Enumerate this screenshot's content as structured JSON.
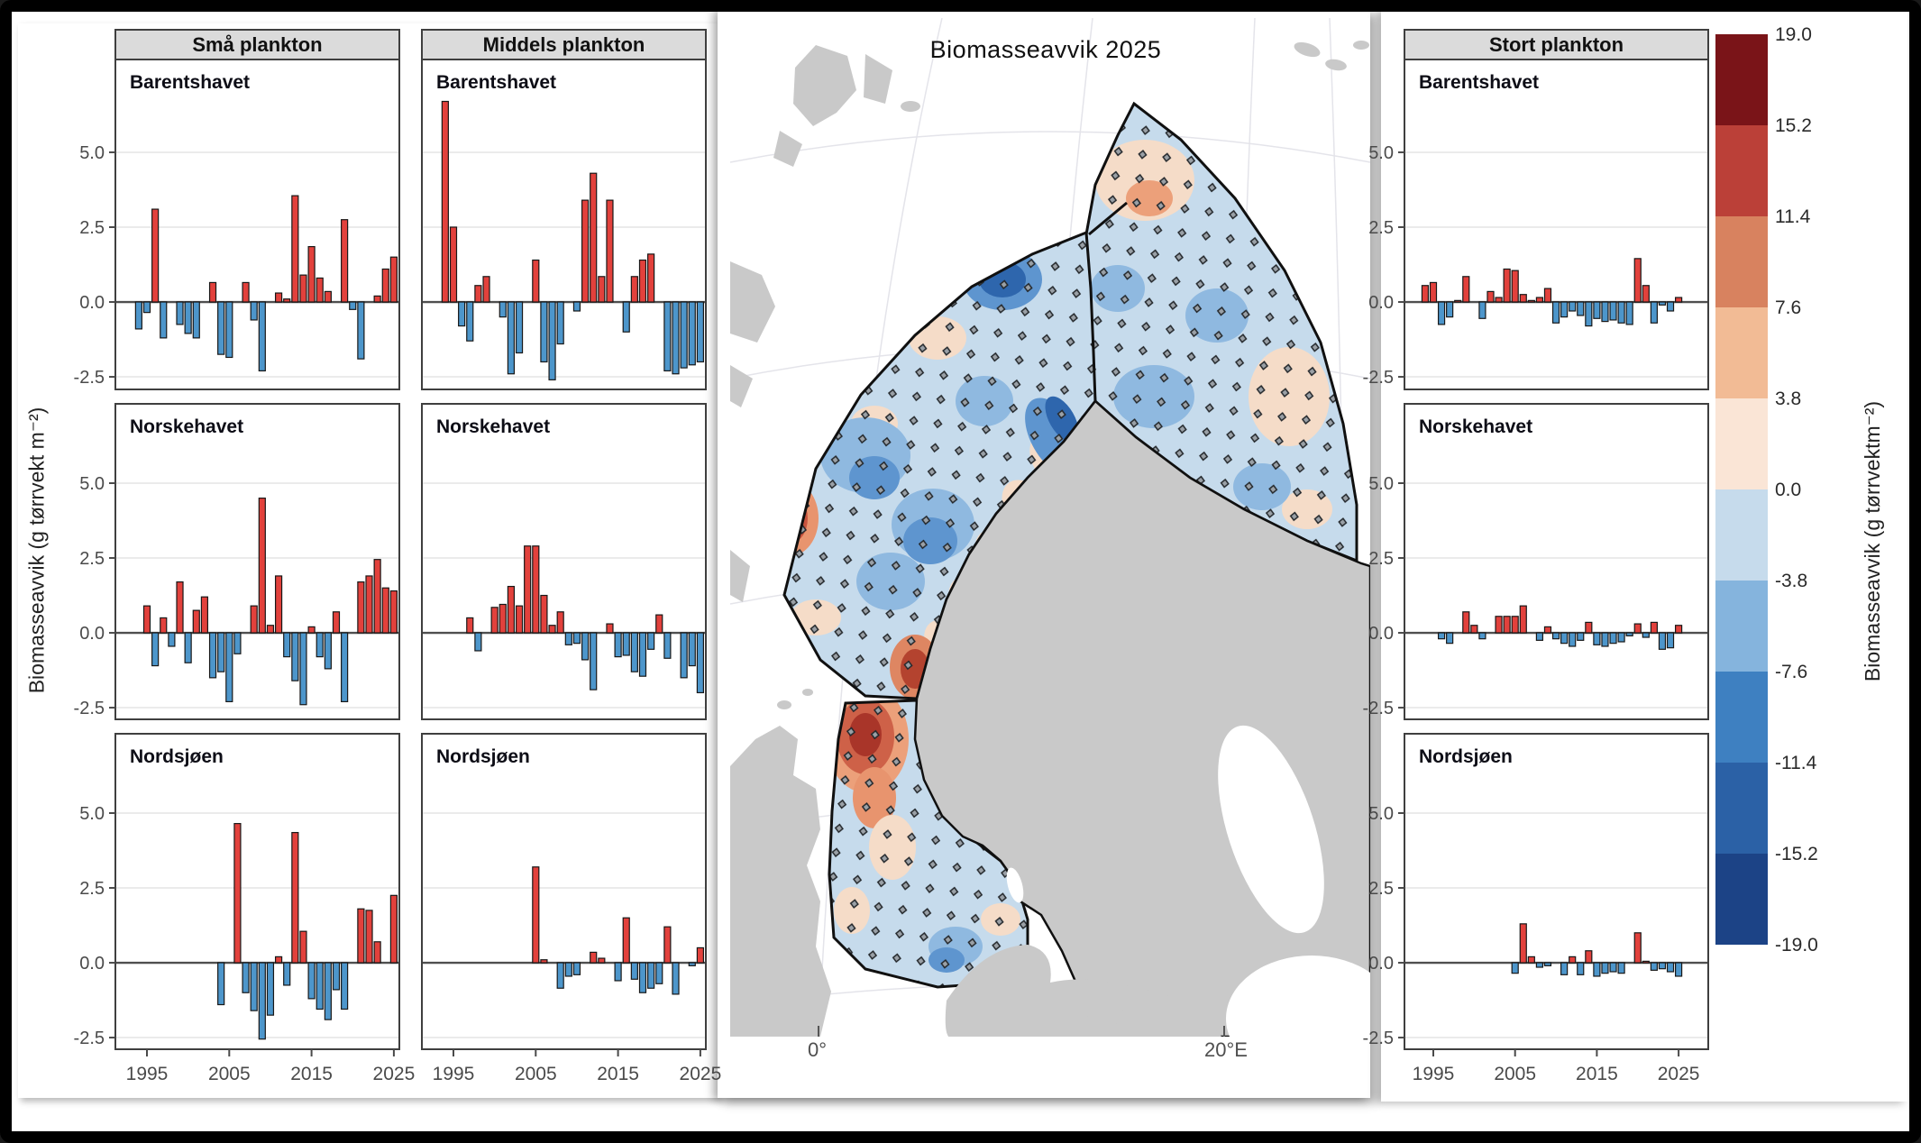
{
  "chart_data": {
    "type": "bar",
    "title": "Biomasseavvik 2025",
    "ylabel": "Biomasseavvik (g tørrvekt m⁻²)",
    "xlabel": "",
    "x_ticks": [
      1995,
      2005,
      2015,
      2025
    ],
    "y_ticks": [
      "5.0",
      "2.5",
      "0.0",
      "-2.5"
    ],
    "ylim": [
      -2.9,
      8.1
    ],
    "grid": "horizontal",
    "columns": [
      {
        "label": "Små plankton"
      },
      {
        "label": "Middels plankton"
      },
      {
        "label": "Stort plankton"
      }
    ],
    "rows": [
      "Barentshavet",
      "Norskehavet",
      "Nordsjøen"
    ],
    "facets": [
      {
        "id": "sma-barentshavet",
        "col": 0,
        "row": 0,
        "region": "Barentshavet",
        "points": [
          [
            1994,
            -0.9
          ],
          [
            1995,
            -0.35
          ],
          [
            1996,
            3.1
          ],
          [
            1997,
            -1.2
          ],
          [
            1999,
            -0.75
          ],
          [
            2000,
            -1.05
          ],
          [
            2001,
            -1.2
          ],
          [
            2003,
            0.65
          ],
          [
            2004,
            -1.75
          ],
          [
            2005,
            -1.85
          ],
          [
            2007,
            0.65
          ],
          [
            2008,
            -0.6
          ],
          [
            2009,
            -2.3
          ],
          [
            2011,
            0.3
          ],
          [
            2012,
            0.1
          ],
          [
            2013,
            3.55
          ],
          [
            2014,
            0.9
          ],
          [
            2015,
            1.85
          ],
          [
            2016,
            0.8
          ],
          [
            2017,
            0.35
          ],
          [
            2019,
            2.75
          ],
          [
            2020,
            -0.25
          ],
          [
            2021,
            -1.9
          ],
          [
            2023,
            0.2
          ],
          [
            2024,
            1.1
          ],
          [
            2025,
            1.5
          ]
        ]
      },
      {
        "id": "sma-norskehavet",
        "col": 0,
        "row": 1,
        "region": "Norskehavet",
        "points": [
          [
            1995,
            0.9
          ],
          [
            1996,
            -1.1
          ],
          [
            1997,
            0.5
          ],
          [
            1998,
            -0.45
          ],
          [
            1999,
            1.7
          ],
          [
            2000,
            -1.0
          ],
          [
            2001,
            0.75
          ],
          [
            2002,
            1.2
          ],
          [
            2003,
            -1.5
          ],
          [
            2004,
            -1.3
          ],
          [
            2005,
            -2.3
          ],
          [
            2006,
            -0.7
          ],
          [
            2008,
            0.9
          ],
          [
            2009,
            4.5
          ],
          [
            2010,
            0.25
          ],
          [
            2011,
            1.9
          ],
          [
            2012,
            -0.8
          ],
          [
            2013,
            -1.6
          ],
          [
            2014,
            -2.4
          ],
          [
            2015,
            0.2
          ],
          [
            2016,
            -0.8
          ],
          [
            2017,
            -1.2
          ],
          [
            2018,
            0.7
          ],
          [
            2019,
            -2.3
          ],
          [
            2021,
            1.7
          ],
          [
            2022,
            1.9
          ],
          [
            2023,
            2.45
          ],
          [
            2024,
            1.5
          ],
          [
            2025,
            1.4
          ]
        ]
      },
      {
        "id": "sma-nordsjoen",
        "col": 0,
        "row": 2,
        "region": "Nordsjøen",
        "points": [
          [
            2004,
            -1.4
          ],
          [
            2006,
            4.65
          ],
          [
            2007,
            -1.0
          ],
          [
            2008,
            -1.6
          ],
          [
            2009,
            -2.55
          ],
          [
            2010,
            -1.75
          ],
          [
            2011,
            0.2
          ],
          [
            2012,
            -0.75
          ],
          [
            2013,
            4.35
          ],
          [
            2014,
            1.05
          ],
          [
            2015,
            -1.2
          ],
          [
            2016,
            -1.55
          ],
          [
            2017,
            -1.9
          ],
          [
            2018,
            -0.9
          ],
          [
            2019,
            -1.55
          ],
          [
            2021,
            1.8
          ],
          [
            2022,
            1.75
          ],
          [
            2023,
            0.7
          ],
          [
            2025,
            2.25
          ]
        ]
      },
      {
        "id": "middels-barentshavet",
        "col": 1,
        "row": 0,
        "region": "Barentshavet",
        "points": [
          [
            1994,
            6.7
          ],
          [
            1995,
            2.5
          ],
          [
            1996,
            -0.8
          ],
          [
            1997,
            -1.3
          ],
          [
            1998,
            0.55
          ],
          [
            1999,
            0.85
          ],
          [
            2001,
            -0.5
          ],
          [
            2002,
            -2.4
          ],
          [
            2003,
            -1.7
          ],
          [
            2005,
            1.4
          ],
          [
            2006,
            -2.0
          ],
          [
            2007,
            -2.6
          ],
          [
            2008,
            -1.4
          ],
          [
            2010,
            -0.3
          ],
          [
            2011,
            3.4
          ],
          [
            2012,
            4.3
          ],
          [
            2013,
            0.85
          ],
          [
            2014,
            3.4
          ],
          [
            2016,
            -1.0
          ],
          [
            2017,
            0.85
          ],
          [
            2018,
            1.4
          ],
          [
            2019,
            1.6
          ],
          [
            2021,
            -2.3
          ],
          [
            2022,
            -2.4
          ],
          [
            2023,
            -2.2
          ],
          [
            2024,
            -2.1
          ],
          [
            2025,
            -2.0
          ]
        ]
      },
      {
        "id": "middels-norskehavet",
        "col": 1,
        "row": 1,
        "region": "Norskehavet",
        "points": [
          [
            1997,
            0.5
          ],
          [
            1998,
            -0.6
          ],
          [
            2000,
            0.85
          ],
          [
            2001,
            0.95
          ],
          [
            2002,
            1.55
          ],
          [
            2003,
            0.9
          ],
          [
            2004,
            2.9
          ],
          [
            2005,
            2.9
          ],
          [
            2006,
            1.25
          ],
          [
            2007,
            0.25
          ],
          [
            2008,
            0.7
          ],
          [
            2009,
            -0.4
          ],
          [
            2010,
            -0.35
          ],
          [
            2011,
            -0.9
          ],
          [
            2012,
            -1.9
          ],
          [
            2014,
            0.3
          ],
          [
            2015,
            -0.8
          ],
          [
            2016,
            -0.75
          ],
          [
            2017,
            -1.3
          ],
          [
            2018,
            -1.45
          ],
          [
            2019,
            -0.55
          ],
          [
            2020,
            0.6
          ],
          [
            2021,
            -0.85
          ],
          [
            2023,
            -1.5
          ],
          [
            2024,
            -1.1
          ],
          [
            2025,
            -2.0
          ]
        ]
      },
      {
        "id": "middels-nordsjoen",
        "col": 1,
        "row": 2,
        "region": "Nordsjøen",
        "points": [
          [
            2005,
            3.2
          ],
          [
            2006,
            0.1
          ],
          [
            2008,
            -0.85
          ],
          [
            2009,
            -0.45
          ],
          [
            2010,
            -0.4
          ],
          [
            2012,
            0.35
          ],
          [
            2013,
            0.15
          ],
          [
            2015,
            -0.6
          ],
          [
            2016,
            1.5
          ],
          [
            2017,
            -0.55
          ],
          [
            2018,
            -1.0
          ],
          [
            2019,
            -0.85
          ],
          [
            2020,
            -0.7
          ],
          [
            2021,
            1.2
          ],
          [
            2022,
            -1.05
          ],
          [
            2024,
            -0.1
          ],
          [
            2025,
            0.5
          ]
        ]
      },
      {
        "id": "stort-barentshavet",
        "col": 2,
        "row": 0,
        "region": "Barentshavet",
        "points": [
          [
            1994,
            0.55
          ],
          [
            1995,
            0.65
          ],
          [
            1996,
            -0.75
          ],
          [
            1997,
            -0.5
          ],
          [
            1998,
            0.05
          ],
          [
            1999,
            0.85
          ],
          [
            2001,
            -0.55
          ],
          [
            2002,
            0.35
          ],
          [
            2003,
            0.15
          ],
          [
            2004,
            1.1
          ],
          [
            2005,
            1.05
          ],
          [
            2006,
            0.25
          ],
          [
            2007,
            0.05
          ],
          [
            2008,
            0.15
          ],
          [
            2009,
            0.45
          ],
          [
            2010,
            -0.7
          ],
          [
            2011,
            -0.5
          ],
          [
            2012,
            -0.3
          ],
          [
            2013,
            -0.45
          ],
          [
            2014,
            -0.8
          ],
          [
            2015,
            -0.55
          ],
          [
            2016,
            -0.65
          ],
          [
            2017,
            -0.6
          ],
          [
            2018,
            -0.7
          ],
          [
            2019,
            -0.75
          ],
          [
            2020,
            1.45
          ],
          [
            2021,
            0.55
          ],
          [
            2022,
            -0.7
          ],
          [
            2023,
            -0.1
          ],
          [
            2024,
            -0.3
          ],
          [
            2025,
            0.15
          ]
        ]
      },
      {
        "id": "stort-norskehavet",
        "col": 2,
        "row": 1,
        "region": "Norskehavet",
        "points": [
          [
            1996,
            -0.2
          ],
          [
            1997,
            -0.35
          ],
          [
            1999,
            0.7
          ],
          [
            2000,
            0.25
          ],
          [
            2001,
            -0.2
          ],
          [
            2003,
            0.55
          ],
          [
            2004,
            0.55
          ],
          [
            2005,
            0.55
          ],
          [
            2006,
            0.9
          ],
          [
            2008,
            -0.25
          ],
          [
            2009,
            0.2
          ],
          [
            2010,
            -0.2
          ],
          [
            2011,
            -0.35
          ],
          [
            2012,
            -0.45
          ],
          [
            2013,
            -0.25
          ],
          [
            2014,
            0.35
          ],
          [
            2015,
            -0.4
          ],
          [
            2016,
            -0.45
          ],
          [
            2017,
            -0.35
          ],
          [
            2018,
            -0.3
          ],
          [
            2019,
            -0.1
          ],
          [
            2020,
            0.3
          ],
          [
            2021,
            -0.15
          ],
          [
            2022,
            0.35
          ],
          [
            2023,
            -0.55
          ],
          [
            2024,
            -0.5
          ],
          [
            2025,
            0.25
          ]
        ]
      },
      {
        "id": "stort-nordsjoen",
        "col": 2,
        "row": 2,
        "region": "Nordsjøen",
        "points": [
          [
            2005,
            -0.35
          ],
          [
            2006,
            1.3
          ],
          [
            2007,
            0.2
          ],
          [
            2008,
            -0.15
          ],
          [
            2009,
            -0.1
          ],
          [
            2011,
            -0.4
          ],
          [
            2012,
            0.2
          ],
          [
            2013,
            -0.4
          ],
          [
            2014,
            0.4
          ],
          [
            2015,
            -0.45
          ],
          [
            2016,
            -0.35
          ],
          [
            2017,
            -0.3
          ],
          [
            2018,
            -0.35
          ],
          [
            2020,
            1.0
          ],
          [
            2021,
            0.05
          ],
          [
            2022,
            -0.25
          ],
          [
            2023,
            -0.2
          ],
          [
            2024,
            -0.3
          ],
          [
            2025,
            -0.45
          ]
        ]
      }
    ]
  },
  "map": {
    "title": "Biomasseavvik 2025",
    "lon_ticks": [
      "0°",
      "20°E"
    ]
  },
  "colorbar": {
    "label": "Biomasseavvik (g tørrvektm⁻²)",
    "tick_labels": [
      "19.0",
      "15.2",
      "11.4",
      "7.6",
      "3.8",
      "0.0",
      "-3.8",
      "-7.6",
      "-11.4",
      "-15.2",
      "-19.0"
    ],
    "colors": [
      "#7A1418",
      "#BB4038",
      "#D8825F",
      "#F2BB95",
      "#FAE5D6",
      "#C6DBEC",
      "#85B4DD",
      "#3E80C1",
      "#2B61A6",
      "#1C4386"
    ]
  },
  "style_colors": {
    "bar_positive": "#E2413C",
    "bar_negative": "#4D96CB",
    "strip_bg": "#DBDBDB",
    "land": "#C9C9C9"
  }
}
